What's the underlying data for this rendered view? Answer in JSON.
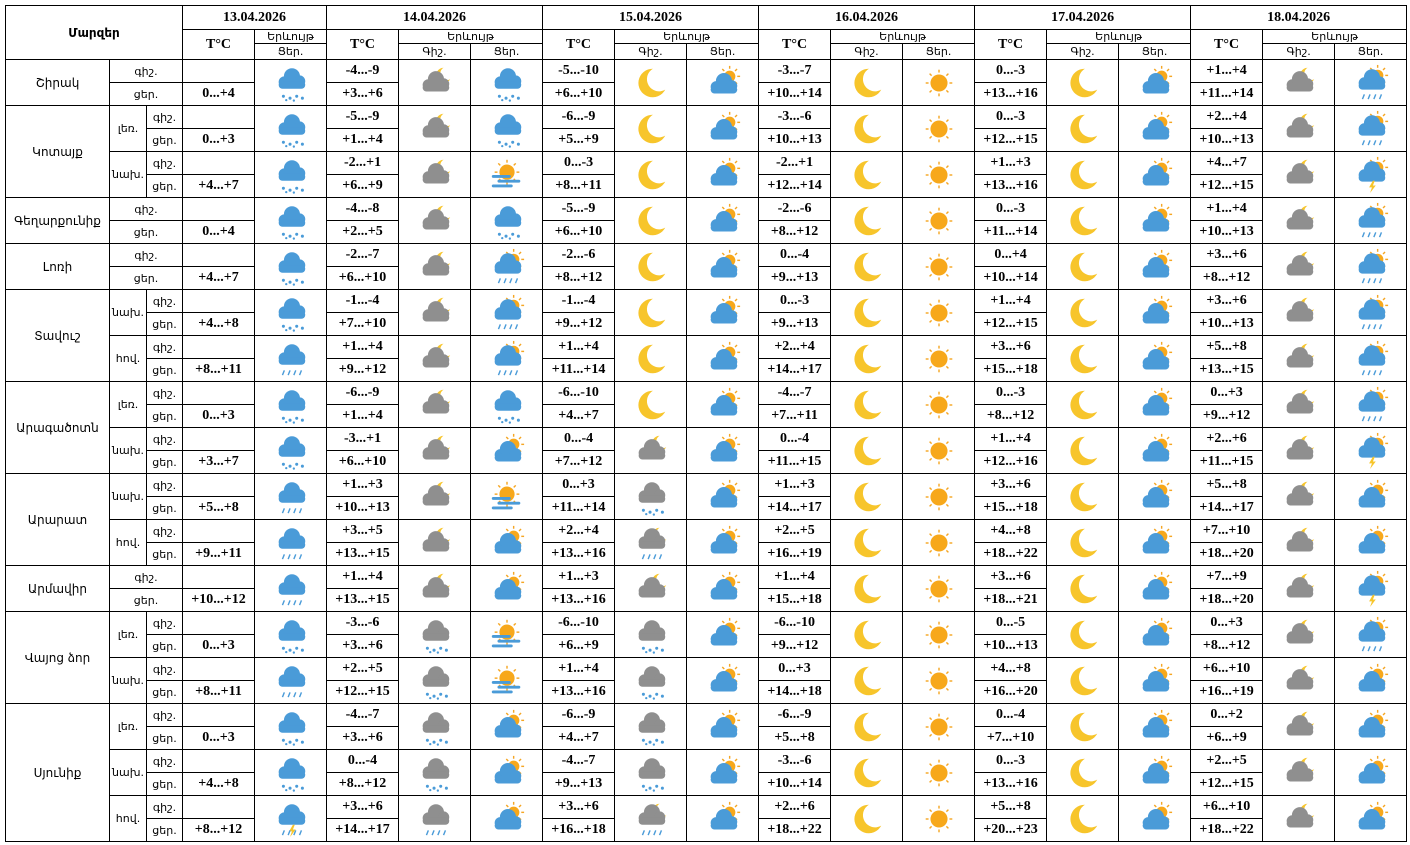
{
  "header": {
    "region": "Մարզեր",
    "temp": "T°C",
    "phenomenon": "Երևույթ",
    "night": "Գիշ.",
    "day": "Ցեր.",
    "dates": [
      "13.04.2026",
      "14.04.2026",
      "15.04.2026",
      "16.04.2026",
      "17.04.2026",
      "18.04.2026"
    ]
  },
  "periods": [
    "գիշ.",
    "ցեր."
  ],
  "regions": [
    {
      "name": "Շիրակ",
      "areas": [
        {
          "d13": "0...+4",
          "nights": [
            "-4...-9",
            "-5...-10",
            "-3...-7",
            "0...-3",
            "+1...+4"
          ],
          "days": [
            "+3...+6",
            "+6...+10",
            "+10...+14",
            "+13...+16",
            "+11...+14"
          ]
        }
      ]
    },
    {
      "name": "Կոտայք",
      "areas": [
        {
          "name": "լեռ.",
          "d13": "0...+3",
          "nights": [
            "-5...-9",
            "-6...-9",
            "-3...-6",
            "0...-3",
            "+2...+4"
          ],
          "days": [
            "+1...+4",
            "+5...+9",
            "+10...+13",
            "+12...+15",
            "+10...+13"
          ]
        },
        {
          "name": "նախ.",
          "d13": "+4...+7",
          "nights": [
            "-2...+1",
            "0...-3",
            "-2...+1",
            "+1...+3",
            "+4...+7"
          ],
          "days": [
            "+6...+9",
            "+8...+11",
            "+12...+14",
            "+13...+16",
            "+12...+15"
          ]
        }
      ]
    },
    {
      "name": "Գեղարքունիք",
      "areas": [
        {
          "d13": "0...+4",
          "nights": [
            "-4...-8",
            "-5...-9",
            "-2...-6",
            "0...-3",
            "+1...+4"
          ],
          "days": [
            "+2...+5",
            "+6...+10",
            "+8...+12",
            "+11...+14",
            "+10...+13"
          ]
        }
      ]
    },
    {
      "name": "Լոռի",
      "areas": [
        {
          "d13": "+4...+7",
          "nights": [
            "-2...-7",
            "-2...-6",
            "0...-4",
            "0...+4",
            "+3...+6"
          ],
          "days": [
            "+6...+10",
            "+8...+12",
            "+9...+13",
            "+10...+14",
            "+8...+12"
          ]
        }
      ]
    },
    {
      "name": "Տավուշ",
      "areas": [
        {
          "name": "նախ.",
          "d13": "+4...+8",
          "nights": [
            "-1...-4",
            "-1...-4",
            "0...-3",
            "+1...+4",
            "+3...+6"
          ],
          "days": [
            "+7...+10",
            "+9...+12",
            "+9...+13",
            "+12...+15",
            "+10...+13"
          ]
        },
        {
          "name": "հով.",
          "d13": "+8...+11",
          "nights": [
            "+1...+4",
            "+1...+4",
            "+2...+4",
            "+3...+6",
            "+5...+8"
          ],
          "days": [
            "+9...+12",
            "+11...+14",
            "+14...+17",
            "+15...+18",
            "+13...+15"
          ]
        }
      ]
    },
    {
      "name": "Արագածոտն",
      "areas": [
        {
          "name": "լեռ.",
          "d13": "0...+3",
          "nights": [
            "-6...-9",
            "-6...-10",
            "-4...-7",
            "0...-3",
            "0...+3"
          ],
          "days": [
            "+1...+4",
            "+4...+7",
            "+7...+11",
            "+8...+12",
            "+9...+12"
          ]
        },
        {
          "name": "նախ.",
          "d13": "+3...+7",
          "nights": [
            "-3...+1",
            "0...-4",
            "0...-4",
            "+1...+4",
            "+2...+6"
          ],
          "days": [
            "+6...+10",
            "+7...+12",
            "+11...+15",
            "+12...+16",
            "+11...+15"
          ]
        }
      ]
    },
    {
      "name": "Արարատ",
      "areas": [
        {
          "name": "նախ.",
          "d13": "+5...+8",
          "nights": [
            "+1...+3",
            "0...+3",
            "+1...+3",
            "+3...+6",
            "+5...+8"
          ],
          "days": [
            "+10...+13",
            "+11...+14",
            "+14...+17",
            "+15...+18",
            "+14...+17"
          ]
        },
        {
          "name": "հով.",
          "d13": "+9...+11",
          "nights": [
            "+3...+5",
            "+2...+4",
            "+2...+5",
            "+4...+8",
            "+7...+10"
          ],
          "days": [
            "+13...+15",
            "+13...+16",
            "+16...+19",
            "+18...+22",
            "+18...+20"
          ]
        }
      ]
    },
    {
      "name": "Արմավիր",
      "areas": [
        {
          "d13": "+10...+12",
          "nights": [
            "+1...+4",
            "+1...+3",
            "+1...+4",
            "+3...+6",
            "+7...+9"
          ],
          "days": [
            "+13...+15",
            "+13...+16",
            "+15...+18",
            "+18...+21",
            "+18...+20"
          ]
        }
      ]
    },
    {
      "name": "Վայոց ձոր",
      "areas": [
        {
          "name": "լեռ.",
          "d13": "0...+3",
          "nights": [
            "-3...-6",
            "-6...-10",
            "-6...-10",
            "0...-5",
            "0...+3"
          ],
          "days": [
            "+3...+6",
            "+6...+9",
            "+9...+12",
            "+10...+13",
            "+8...+12"
          ]
        },
        {
          "name": "նախ.",
          "d13": "+8...+11",
          "nights": [
            "+2...+5",
            "+1...+4",
            "0...+3",
            "+4...+8",
            "+6...+10"
          ],
          "days": [
            "+12...+15",
            "+13...+16",
            "+14...+18",
            "+16...+20",
            "+16...+19"
          ]
        }
      ]
    },
    {
      "name": "Սյունիք",
      "areas": [
        {
          "name": "լեռ.",
          "d13": "0...+3",
          "nights": [
            "-4...-7",
            "-6...-9",
            "-6...-9",
            "0...-4",
            "0...+2"
          ],
          "days": [
            "+3...+6",
            "+4...+7",
            "+5...+8",
            "+7...+10",
            "+6...+9"
          ]
        },
        {
          "name": "նախ.",
          "d13": "+4...+8",
          "nights": [
            "0...-4",
            "-4...-7",
            "-3...-6",
            "0...-3",
            "+2...+5"
          ],
          "days": [
            "+8...+12",
            "+9...+13",
            "+10...+14",
            "+13...+16",
            "+12...+15"
          ]
        },
        {
          "name": "հով.",
          "d13": "+8...+12",
          "nights": [
            "+3...+6",
            "+3...+6",
            "+2...+6",
            "+5...+8",
            "+6...+10"
          ],
          "days": [
            "+14...+17",
            "+16...+18",
            "+18...+22",
            "+20...+23",
            "+18...+22"
          ]
        }
      ]
    }
  ]
}
